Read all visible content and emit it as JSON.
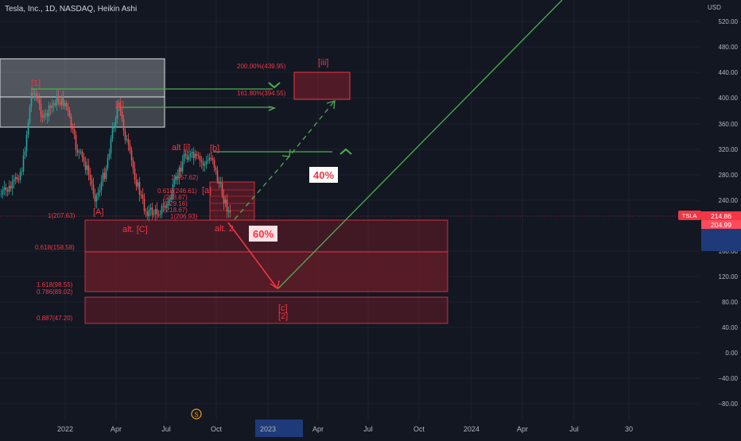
{
  "header": {
    "title": "Tesla, Inc., 1D, NASDAQ, Heikin Ashi"
  },
  "price_axis": {
    "currency": "USD",
    "ticks": [
      "520.00",
      "480.00",
      "440.00",
      "400.00",
      "360.00",
      "320.00",
      "280.00",
      "240.00",
      "160.00",
      "120.00",
      "80.00",
      "40.00",
      "0.00",
      "−40.00",
      "−80.00"
    ],
    "symbol": "TSLA",
    "last_price": "214.86",
    "second_price": "204.99"
  },
  "time_axis": {
    "labels": [
      "2022",
      "Apr",
      "Jul",
      "Oct",
      "2023",
      "Apr",
      "Jul",
      "Oct",
      "2024",
      "Apr",
      "Jul",
      "30"
    ]
  },
  "colors": {
    "background": "#131722",
    "candle_up": "#26a69a",
    "candle_down": "#ef5350",
    "wave_label": "#f23645",
    "projection": "#4caf50",
    "fib_text": "#f23645",
    "zone_fill": "#7a1d2a"
  },
  "chart_data": {
    "type": "candlestick",
    "style": "Heikin Ashi",
    "symbol": "TSLA",
    "interval": "1D",
    "exchange": "NASDAQ",
    "y_range": [
      -100,
      560
    ],
    "x_range": [
      "2021-11",
      "2024-10"
    ],
    "wave_labels": [
      "[1]",
      "[ii]",
      "[iii]",
      "[A]",
      "alt. [C]",
      "alt [i]",
      "[b]",
      "[a]",
      "alt. 2",
      "[c]",
      "[2]"
    ],
    "fib_levels": [
      {
        "label": "200.00%(439.95)",
        "value": 439.95
      },
      {
        "label": "161.80%(394.55)",
        "value": 394.55
      },
      {
        "label": "1(267.62)",
        "value": 267.62
      },
      {
        "label": "0.618(246.61)",
        "value": 246.61
      },
      {
        "label": "(238.87)",
        "value": 238.87
      },
      {
        "label": "(229.16)",
        "value": 229.16
      },
      {
        "label": "(218.67)",
        "value": 218.67
      },
      {
        "label": "1(206.93)",
        "value": 206.93
      },
      {
        "label": "1(207.63)",
        "value": 207.63
      },
      {
        "label": "0.618(158.58)",
        "value": 158.58
      },
      {
        "label": "1.618(98.55)",
        "value": 98.55
      },
      {
        "label": "0.786(89.02)",
        "value": 89.02
      },
      {
        "label": "0.887(47.20)",
        "value": 47.2
      }
    ],
    "scenarios": [
      {
        "label": "40%",
        "direction": "up"
      },
      {
        "label": "60%",
        "direction": "down"
      }
    ],
    "last_price": 214.86
  }
}
